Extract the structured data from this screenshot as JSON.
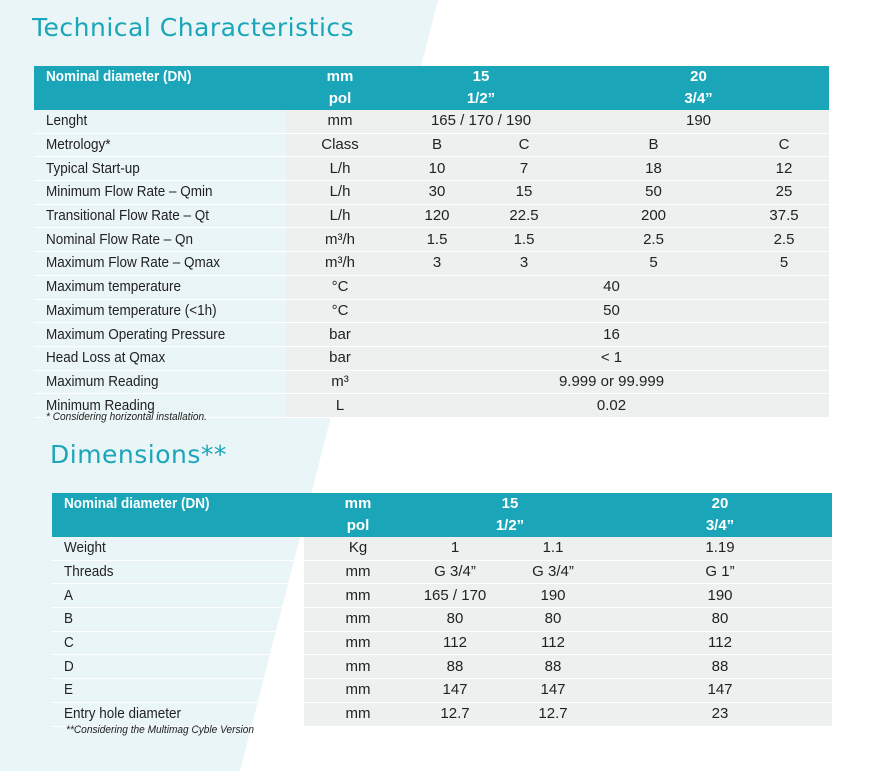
{
  "technical": {
    "title": "Technical Characteristics",
    "header": {
      "label": "Nominal diameter (DN)",
      "unit_top": "mm",
      "unit_bottom": "pol",
      "dn15_top": "15",
      "dn15_bottom": "1/2”",
      "dn20_top": "20",
      "dn20_bottom": "3/4”"
    },
    "rows": [
      {
        "label": "Lenght",
        "unit": "mm",
        "v15": "165 / 170 / 190",
        "v20": "190"
      },
      {
        "label": "Metrology*",
        "unit": "Class",
        "v15b": "B",
        "v15c": "C",
        "v20b": "B",
        "v20c": "C"
      },
      {
        "label": "Typical Start-up",
        "unit": "L/h",
        "v15b": "10",
        "v15c": "7",
        "v20b": "18",
        "v20c": "12"
      },
      {
        "label": "Minimum Flow Rate – Qmin",
        "unit": "L/h",
        "v15b": "30",
        "v15c": "15",
        "v20b": "50",
        "v20c": "25"
      },
      {
        "label": "Transitional Flow Rate – Qt",
        "unit": "L/h",
        "v15b": "120",
        "v15c": "22.5",
        "v20b": "200",
        "v20c": "37.5"
      },
      {
        "label": "Nominal Flow Rate – Qn",
        "unit": "m³/h",
        "v15b": "1.5",
        "v15c": "1.5",
        "v20b": "2.5",
        "v20c": "2.5"
      },
      {
        "label": "Maximum Flow Rate – Qmax",
        "unit": "m³/h",
        "v15b": "3",
        "v15c": "3",
        "v20b": "5",
        "v20c": "5"
      },
      {
        "label": "Maximum temperature",
        "unit": "°C",
        "all": "40"
      },
      {
        "label": "Maximum temperature (<1h)",
        "unit": "°C",
        "all": "50"
      },
      {
        "label": "Maximum Operating Pressure",
        "unit": "bar",
        "all": "16"
      },
      {
        "label": "Head Loss at Qmax",
        "unit": "bar",
        "all": "< 1"
      },
      {
        "label": "Maximum Reading",
        "unit": "m³",
        "all": "9.999 or 99.999"
      },
      {
        "label": "Minimum Reading",
        "unit": "L",
        "all": "0.02"
      }
    ],
    "note": "* Considering horizontal installation."
  },
  "dimensions": {
    "title": "Dimensions**",
    "header": {
      "label": "Nominal diameter (DN)",
      "unit_top": "mm",
      "unit_bottom": "pol",
      "dn15_top": "15",
      "dn15_bottom": "1/2”",
      "dn20_top": "20",
      "dn20_bottom": "3/4”"
    },
    "rows": [
      {
        "label": "Weight",
        "unit": "Kg",
        "a": "1",
        "b": "1.1",
        "c": "1.19"
      },
      {
        "label": "Threads",
        "unit": "mm",
        "a": "G 3/4”",
        "b": "G 3/4”",
        "c": "G 1”"
      },
      {
        "label": "A",
        "unit": "mm",
        "a": "165 / 170",
        "b": "190",
        "c": "190"
      },
      {
        "label": "B",
        "unit": "mm",
        "a": "80",
        "b": "80",
        "c": "80"
      },
      {
        "label": "C",
        "unit": "mm",
        "a": "112",
        "b": "112",
        "c": "112"
      },
      {
        "label": "D",
        "unit": "mm",
        "a": "88",
        "b": "88",
        "c": "88"
      },
      {
        "label": "E",
        "unit": "mm",
        "a": "147",
        "b": "147",
        "c": "147"
      },
      {
        "label": "Entry hole diameter",
        "unit": "mm",
        "a": "12.7",
        "b": "12.7",
        "c": "23"
      }
    ],
    "note": "**Considering the Multimag Cyble Version"
  }
}
